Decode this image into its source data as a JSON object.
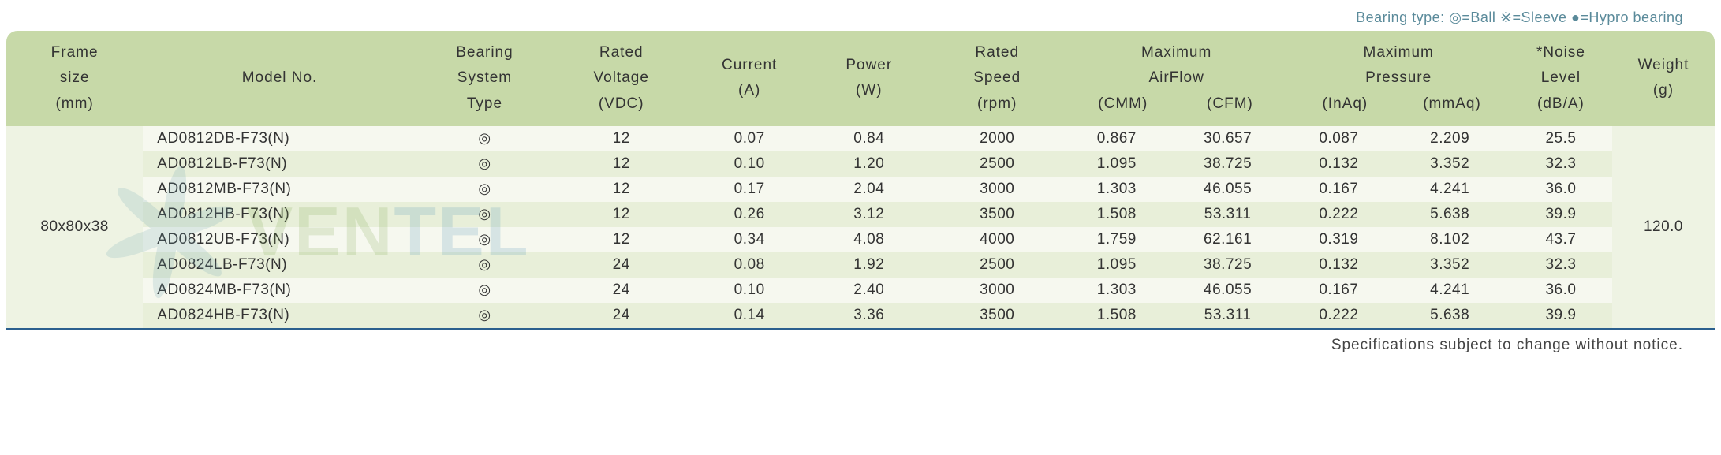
{
  "legend": {
    "label": "Bearing type:",
    "items": "◎=Ball ※=Sleeve ●=Hypro bearing"
  },
  "header": {
    "frame": {
      "l1": "Frame",
      "l2": "size",
      "l3": "(mm)"
    },
    "model": {
      "l1": "",
      "l2": "Model No.",
      "l3": ""
    },
    "bearing": {
      "l1": "Bearing",
      "l2": "System",
      "l3": "Type"
    },
    "voltage": {
      "l1": "Rated",
      "l2": "Voltage",
      "l3": "(VDC)"
    },
    "current": {
      "l1": "",
      "l2": "Current",
      "l3": "(A)"
    },
    "power": {
      "l1": "",
      "l2": "Power",
      "l3": "(W)"
    },
    "speed": {
      "l1": "Rated",
      "l2": "Speed",
      "l3": "(rpm)"
    },
    "airflow": {
      "l1": "Maximum",
      "l2": "AirFlow",
      "sub1": "(CMM)",
      "sub2": "(CFM)"
    },
    "pressure": {
      "l1": "Maximum",
      "l2": "Pressure",
      "sub1": "(InAq)",
      "sub2": "(mmAq)"
    },
    "noise": {
      "l1": "*Noise",
      "l2": "Level",
      "l3": "(dB/A)"
    },
    "weight": {
      "l1": "",
      "l2": "Weight",
      "l3": "(g)"
    }
  },
  "frame_size": "80x80x38",
  "weight_value": "120.0",
  "bearing_symbol": "◎",
  "rows": [
    {
      "model": "AD0812DB-F73(N)",
      "v": "12",
      "a": "0.07",
      "w": "0.84",
      "rpm": "2000",
      "cmm": "0.867",
      "cfm": "30.657",
      "inaq": "0.087",
      "mmaq": "2.209",
      "db": "25.5"
    },
    {
      "model": "AD0812LB-F73(N)",
      "v": "12",
      "a": "0.10",
      "w": "1.20",
      "rpm": "2500",
      "cmm": "1.095",
      "cfm": "38.725",
      "inaq": "0.132",
      "mmaq": "3.352",
      "db": "32.3"
    },
    {
      "model": "AD0812MB-F73(N)",
      "v": "12",
      "a": "0.17",
      "w": "2.04",
      "rpm": "3000",
      "cmm": "1.303",
      "cfm": "46.055",
      "inaq": "0.167",
      "mmaq": "4.241",
      "db": "36.0"
    },
    {
      "model": "AD0812HB-F73(N)",
      "v": "12",
      "a": "0.26",
      "w": "3.12",
      "rpm": "3500",
      "cmm": "1.508",
      "cfm": "53.311",
      "inaq": "0.222",
      "mmaq": "5.638",
      "db": "39.9"
    },
    {
      "model": "AD0812UB-F73(N)",
      "v": "12",
      "a": "0.34",
      "w": "4.08",
      "rpm": "4000",
      "cmm": "1.759",
      "cfm": "62.161",
      "inaq": "0.319",
      "mmaq": "8.102",
      "db": "43.7"
    },
    {
      "model": "AD0824LB-F73(N)",
      "v": "24",
      "a": "0.08",
      "w": "1.92",
      "rpm": "2500",
      "cmm": "1.095",
      "cfm": "38.725",
      "inaq": "0.132",
      "mmaq": "3.352",
      "db": "32.3"
    },
    {
      "model": "AD0824MB-F73(N)",
      "v": "24",
      "a": "0.10",
      "w": "2.40",
      "rpm": "3000",
      "cmm": "1.303",
      "cfm": "46.055",
      "inaq": "0.167",
      "mmaq": "4.241",
      "db": "36.0"
    },
    {
      "model": "AD0824HB-F73(N)",
      "v": "24",
      "a": "0.14",
      "w": "3.36",
      "rpm": "3500",
      "cmm": "1.508",
      "cfm": "53.311",
      "inaq": "0.222",
      "mmaq": "5.638",
      "db": "39.9"
    }
  ],
  "footnote": "Specifications subject to change without notice.",
  "colors": {
    "header_bg": "#c7d9a8",
    "row_a": "#e8efd9",
    "row_b": "#f6f8ef",
    "rule": "#2b5f8e",
    "legend_text": "#5a8a9a"
  },
  "watermark": {
    "text_g": "VEN",
    "text_b": "TEL"
  },
  "col_widths_pct": [
    8,
    16,
    8,
    8,
    7,
    7,
    8,
    6,
    7,
    6,
    7,
    6,
    6
  ]
}
